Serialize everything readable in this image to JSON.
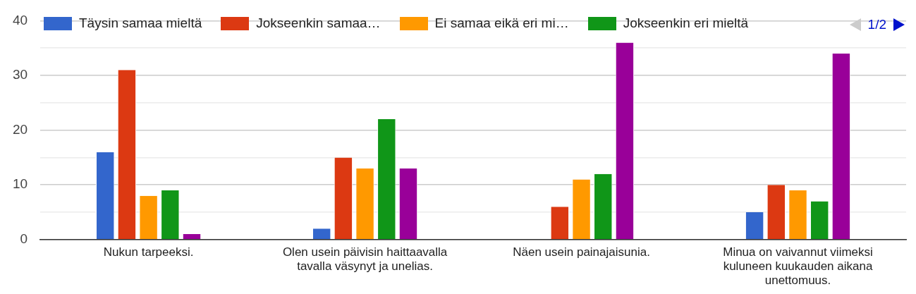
{
  "chart_data": {
    "type": "bar",
    "categories": [
      "Nukun tarpeeksi.",
      "Olen usein päivisin haittaavalla tavalla väsynyt ja unelias.",
      "Näen usein painajaisunia.",
      "Minua on vaivannut viimeksi kuluneen kuukauden aikana unettomuus."
    ],
    "series": [
      {
        "name": "Täysin samaa mieltä",
        "color": "#3366cc",
        "values": [
          16,
          2,
          0,
          5
        ]
      },
      {
        "name": "Jokseenkin samaa…",
        "color": "#dc3912",
        "values": [
          31,
          15,
          6,
          10
        ]
      },
      {
        "name": "Ei samaa eikä eri mi…",
        "color": "#ff9900",
        "values": [
          8,
          13,
          11,
          9
        ]
      },
      {
        "name": "Jokseenkin eri mieltä",
        "color": "#109618",
        "values": [
          9,
          22,
          12,
          7
        ]
      },
      {
        "color": "#990099",
        "values": [
          1,
          13,
          36,
          34
        ]
      }
    ],
    "ylim": [
      0,
      40
    ],
    "yticks": [
      0,
      {
        "value": 5,
        "label": null
      },
      10,
      {
        "value": 15,
        "label": null
      },
      20,
      {
        "value": 25,
        "label": null
      },
      30,
      {
        "value": 35,
        "label": null
      },
      40
    ],
    "grid": "y",
    "legend": "top",
    "annotations": [
      "1/2"
    ]
  }
}
